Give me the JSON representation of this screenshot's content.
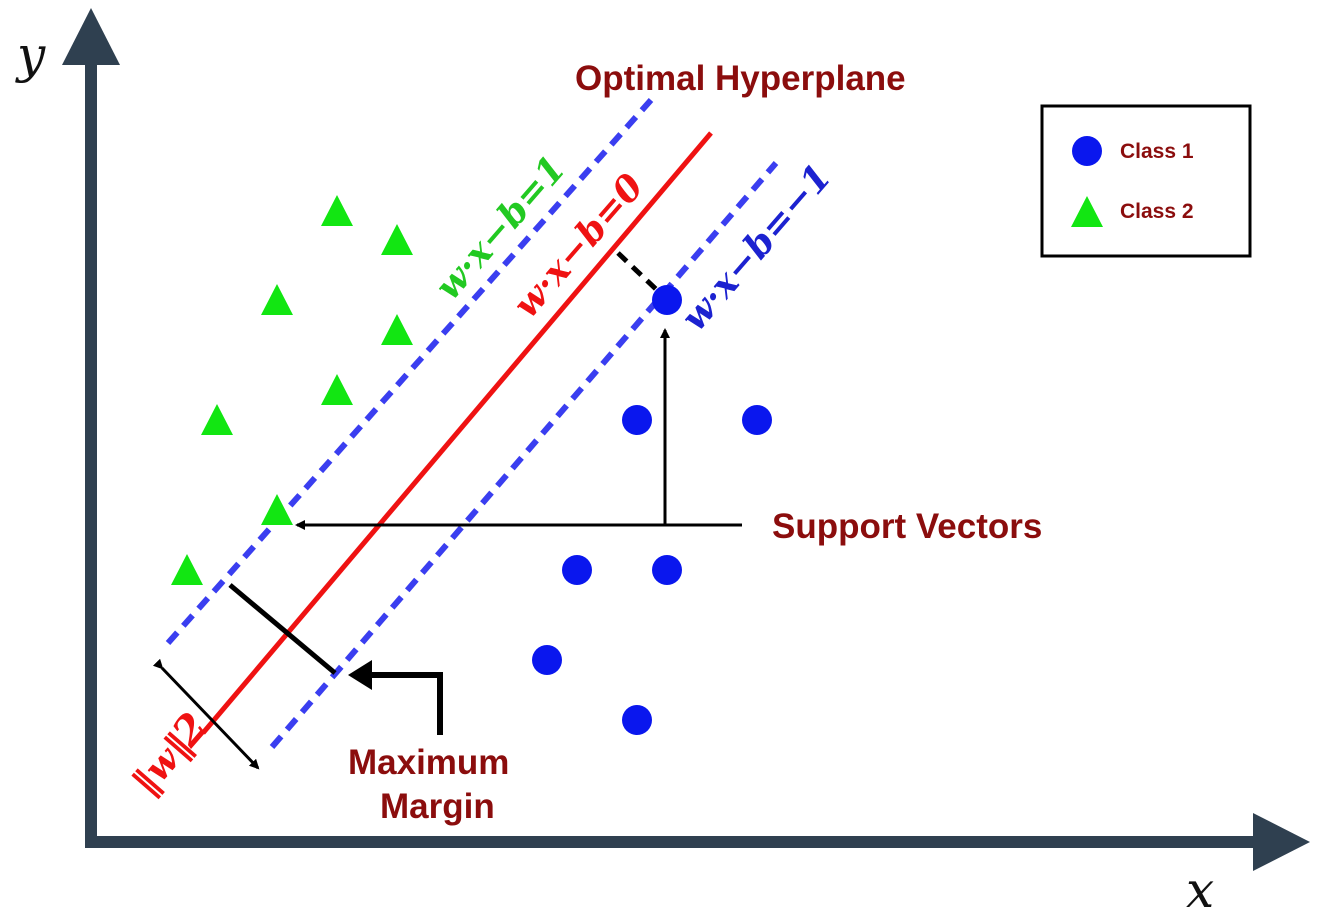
{
  "colors": {
    "axis": "#2f4050",
    "class1": "#0a17ee",
    "class2": "#12e612",
    "hyperplane": "#ef1212",
    "margin_line": "#3a3ef0",
    "label": "#8b0d0d",
    "annotation": "#000000"
  },
  "axes": {
    "x_label": "x",
    "y_label": "y"
  },
  "title": "Optimal Hyperplane",
  "equations": {
    "upper": "w·x−b=1",
    "middle": "w·x−b=0",
    "lower": "w·x−b=−1"
  },
  "margin_formula": {
    "numerator": "2",
    "denominator": "‖w‖"
  },
  "labels": {
    "support_vectors": "Support Vectors",
    "maximum_margin_line1": "Maximum",
    "maximum_margin_line2": "Margin"
  },
  "legend": {
    "items": [
      {
        "label": "Class 1",
        "marker": "circle-icon"
      },
      {
        "label": "Class 2",
        "marker": "triangle-icon"
      }
    ]
  }
}
